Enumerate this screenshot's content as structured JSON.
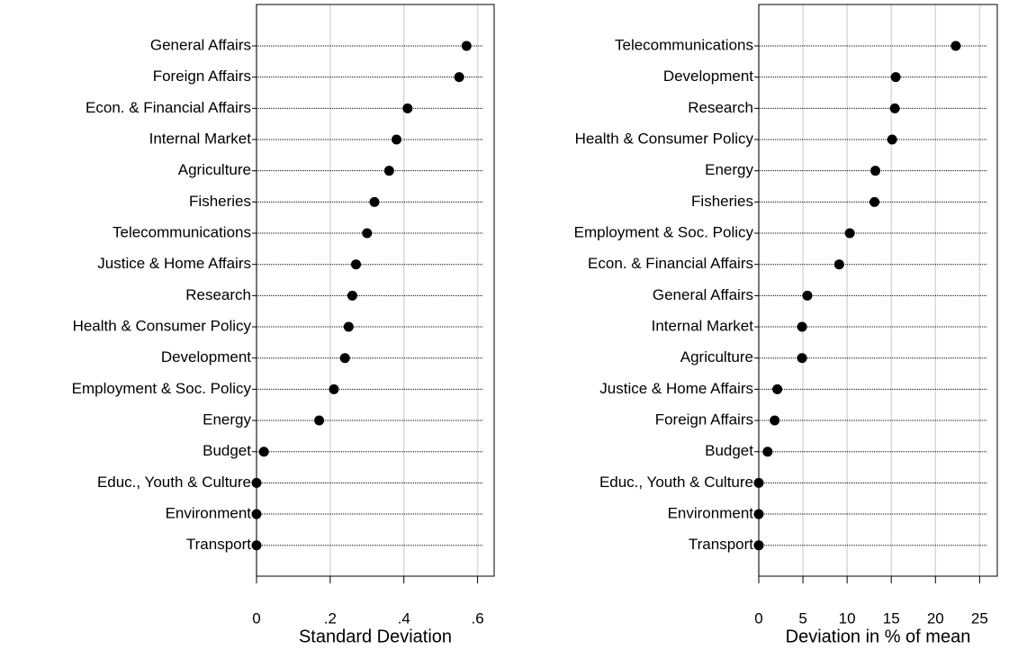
{
  "chart_data": [
    {
      "type": "dot",
      "xlabel": "Standard Deviation",
      "categories": [
        "General Affairs",
        "Foreign Affairs",
        "Econ. & Financial Affairs",
        "Internal Market",
        "Agriculture",
        "Fisheries",
        "Telecommunications",
        "Justice & Home Affairs",
        "Research",
        "Health & Consumer Policy",
        "Development",
        "Employment & Soc. Policy",
        "Energy",
        "Budget",
        "Educ., Youth & Culture",
        "Environment",
        "Transport"
      ],
      "values": [
        0.57,
        0.55,
        0.41,
        0.38,
        0.36,
        0.32,
        0.3,
        0.27,
        0.26,
        0.25,
        0.24,
        0.21,
        0.17,
        0.02,
        0,
        0,
        0
      ],
      "color": "#000000",
      "xlim": [
        0,
        0.645
      ],
      "xticks": [
        0,
        {
          "value": 0.2,
          "label": ".2"
        },
        {
          "value": 0.4,
          "label": ".4"
        },
        {
          "value": 0.6,
          "label": ".6"
        }
      ],
      "grid": true
    },
    {
      "type": "dot",
      "xlabel": "Deviation in % of mean",
      "categories": [
        "Telecommunications",
        "Development",
        "Research",
        "Health & Consumer Policy",
        "Energy",
        "Fisheries",
        "Employment & Soc. Policy",
        "Econ. & Financial Affairs",
        "General Affairs",
        "Internal Market",
        "Agriculture",
        "Justice & Home Affairs",
        "Foreign Affairs",
        "Budget",
        "Educ., Youth & Culture",
        "Environment",
        "Transport"
      ],
      "values": [
        22.3,
        15.5,
        15.4,
        15.1,
        13.2,
        13.1,
        10.3,
        9.1,
        5.5,
        4.9,
        4.9,
        2.1,
        1.8,
        1.0,
        0,
        0,
        0
      ],
      "color": "#000000",
      "xlim": [
        0,
        27
      ],
      "xticks": [
        0,
        5,
        10,
        15,
        20,
        25
      ],
      "grid": true
    }
  ]
}
